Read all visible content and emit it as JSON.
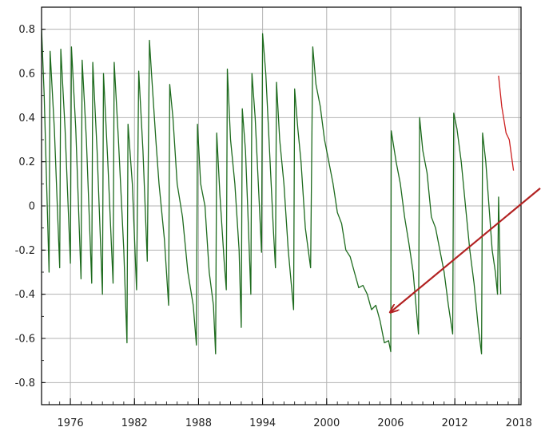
{
  "chart_data": {
    "type": "line",
    "title": "",
    "xlabel": "",
    "ylabel": "",
    "xlim": [
      1973.3,
      2018.2
    ],
    "ylim": [
      -0.9,
      0.9
    ],
    "x_ticks": [
      1976,
      1982,
      1988,
      1994,
      2000,
      2006,
      2012,
      2018
    ],
    "x_tick_labels": [
      "1976",
      "1982",
      "1988",
      "1994",
      "2000",
      "2006",
      "2012",
      "2018"
    ],
    "y_ticks": [
      0.8,
      0.6,
      0.4,
      0.2,
      0,
      -0.2,
      -0.4,
      -0.6,
      -0.8
    ],
    "y_tick_labels": [
      "0.8",
      "0.6",
      "0.4",
      "0.2",
      "0",
      "-0.2",
      "-0.4",
      "-0.6",
      "-0.8"
    ],
    "grid": true,
    "series": [
      {
        "color": "#1e6b1e",
        "points": [
          [
            1973.3,
            0.8
          ],
          [
            1973.55,
            0.5
          ],
          [
            1974.0,
            -0.3
          ],
          [
            1974.1,
            0.7
          ],
          [
            1974.5,
            0.35
          ],
          [
            1975.0,
            -0.28
          ],
          [
            1975.1,
            0.71
          ],
          [
            1975.5,
            0.35
          ],
          [
            1976.0,
            -0.26
          ],
          [
            1976.1,
            0.72
          ],
          [
            1976.5,
            0.35
          ],
          [
            1977.0,
            -0.33
          ],
          [
            1977.1,
            0.66
          ],
          [
            1977.5,
            0.3
          ],
          [
            1978.0,
            -0.35
          ],
          [
            1978.1,
            0.65
          ],
          [
            1978.5,
            0.25
          ],
          [
            1979.0,
            -0.4
          ],
          [
            1979.1,
            0.6
          ],
          [
            1979.5,
            0.2
          ],
          [
            1980.0,
            -0.35
          ],
          [
            1980.1,
            0.65
          ],
          [
            1980.5,
            0.3
          ],
          [
            1981.0,
            -0.2
          ],
          [
            1981.3,
            -0.62
          ],
          [
            1981.4,
            0.37
          ],
          [
            1981.8,
            0.1
          ],
          [
            1982.2,
            -0.38
          ],
          [
            1982.4,
            0.61
          ],
          [
            1982.8,
            0.25
          ],
          [
            1983.2,
            -0.25
          ],
          [
            1983.4,
            0.75
          ],
          [
            1983.6,
            0.6
          ],
          [
            1984.0,
            0.3
          ],
          [
            1984.3,
            0.1
          ],
          [
            1984.8,
            -0.15
          ],
          [
            1985.2,
            -0.45
          ],
          [
            1985.3,
            0.55
          ],
          [
            1985.6,
            0.4
          ],
          [
            1986.0,
            0.1
          ],
          [
            1986.5,
            -0.05
          ],
          [
            1987.0,
            -0.3
          ],
          [
            1987.5,
            -0.45
          ],
          [
            1987.8,
            -0.63
          ],
          [
            1987.9,
            0.37
          ],
          [
            1988.2,
            0.1
          ],
          [
            1988.6,
            0.0
          ],
          [
            1989.0,
            -0.3
          ],
          [
            1989.4,
            -0.45
          ],
          [
            1989.6,
            -0.67
          ],
          [
            1989.7,
            0.33
          ],
          [
            1990.0,
            0.05
          ],
          [
            1990.4,
            -0.25
          ],
          [
            1990.6,
            -0.38
          ],
          [
            1990.7,
            0.62
          ],
          [
            1991.0,
            0.3
          ],
          [
            1991.4,
            0.1
          ],
          [
            1991.8,
            -0.2
          ],
          [
            1992.0,
            -0.55
          ],
          [
            1992.1,
            0.44
          ],
          [
            1992.4,
            0.25
          ],
          [
            1992.6,
            0.0
          ],
          [
            1992.9,
            -0.4
          ],
          [
            1993.0,
            0.6
          ],
          [
            1993.3,
            0.4
          ],
          [
            1993.7,
            0.0
          ],
          [
            1993.9,
            -0.21
          ],
          [
            1994.0,
            0.78
          ],
          [
            1994.3,
            0.6
          ],
          [
            1994.7,
            0.2
          ],
          [
            1995.0,
            -0.1
          ],
          [
            1995.2,
            -0.28
          ],
          [
            1995.3,
            0.56
          ],
          [
            1995.6,
            0.3
          ],
          [
            1996.0,
            0.1
          ],
          [
            1996.4,
            -0.2
          ],
          [
            1996.9,
            -0.47
          ],
          [
            1997.0,
            0.53
          ],
          [
            1997.3,
            0.35
          ],
          [
            1997.6,
            0.2
          ],
          [
            1998.0,
            -0.1
          ],
          [
            1998.5,
            -0.28
          ],
          [
            1998.7,
            0.72
          ],
          [
            1999.0,
            0.55
          ],
          [
            1999.4,
            0.45
          ],
          [
            1999.8,
            0.3
          ],
          [
            2000.2,
            0.2
          ],
          [
            2000.6,
            0.1
          ],
          [
            2001.0,
            -0.03
          ],
          [
            2001.4,
            -0.08
          ],
          [
            2001.8,
            -0.2
          ],
          [
            2002.2,
            -0.23
          ],
          [
            2002.6,
            -0.3
          ],
          [
            2003.0,
            -0.37
          ],
          [
            2003.4,
            -0.36
          ],
          [
            2003.8,
            -0.4
          ],
          [
            2004.2,
            -0.47
          ],
          [
            2004.6,
            -0.45
          ],
          [
            2005.0,
            -0.52
          ],
          [
            2005.4,
            -0.62
          ],
          [
            2005.8,
            -0.61
          ],
          [
            2006.0,
            -0.66
          ],
          [
            2006.05,
            0.34
          ],
          [
            2006.5,
            0.2
          ],
          [
            2006.9,
            0.1
          ],
          [
            2007.3,
            -0.05
          ],
          [
            2007.7,
            -0.17
          ],
          [
            2008.1,
            -0.3
          ],
          [
            2008.6,
            -0.58
          ],
          [
            2008.7,
            0.4
          ],
          [
            2009.0,
            0.25
          ],
          [
            2009.4,
            0.15
          ],
          [
            2009.8,
            -0.05
          ],
          [
            2010.2,
            -0.1
          ],
          [
            2010.6,
            -0.2
          ],
          [
            2011.0,
            -0.3
          ],
          [
            2011.4,
            -0.45
          ],
          [
            2011.8,
            -0.58
          ],
          [
            2011.9,
            0.42
          ],
          [
            2012.2,
            0.35
          ],
          [
            2012.6,
            0.2
          ],
          [
            2013.0,
            0.0
          ],
          [
            2013.4,
            -0.2
          ],
          [
            2013.8,
            -0.35
          ],
          [
            2014.2,
            -0.55
          ],
          [
            2014.5,
            -0.67
          ],
          [
            2014.6,
            0.33
          ],
          [
            2014.9,
            0.2
          ],
          [
            2015.2,
            0.0
          ],
          [
            2015.5,
            -0.2
          ],
          [
            2015.8,
            -0.3
          ],
          [
            2016.0,
            -0.4
          ],
          [
            2016.1,
            0.04
          ],
          [
            2016.3,
            -0.4
          ]
        ]
      },
      {
        "color": "#cc1f1f",
        "points": [
          [
            2016.1,
            0.59
          ],
          [
            2016.4,
            0.45
          ],
          [
            2016.8,
            0.33
          ],
          [
            2017.1,
            0.3
          ],
          [
            2017.5,
            0.16
          ]
        ]
      }
    ],
    "annotations": [
      {
        "type": "arrow",
        "color": "#b22222",
        "from": [
          2020.1,
          0.08
        ],
        "to": [
          2006.0,
          -0.48
        ]
      }
    ]
  }
}
